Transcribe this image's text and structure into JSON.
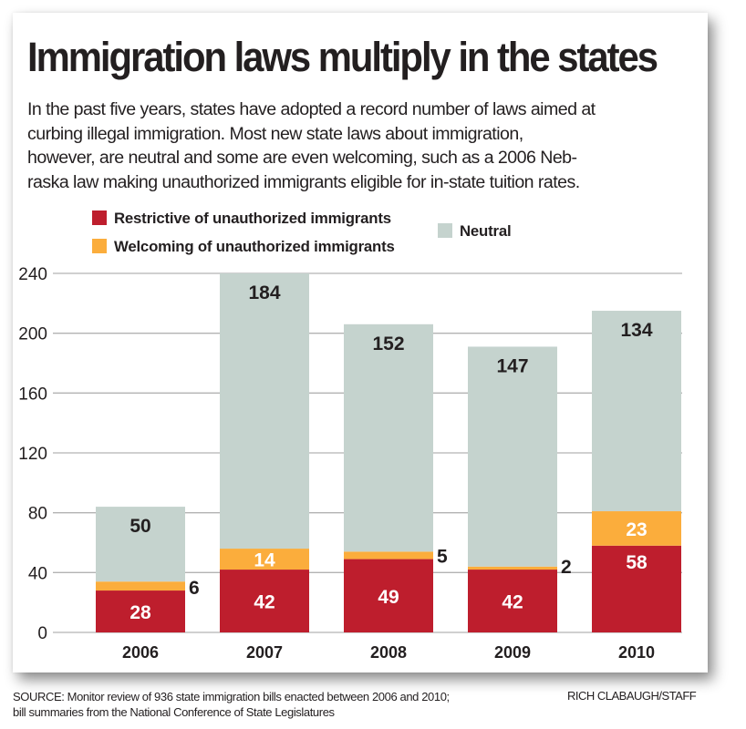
{
  "title": "Immigration laws multiply in the states",
  "intro_lines": [
    "In the past five years, states have adopted a record number of laws aimed at",
    "curbing illegal immigration. Most new state laws about immigration,",
    "however, are neutral and some are even welcoming, such as a 2006 Neb-",
    "raska law making unauthorized immigrants eligible for in-state tuition rates."
  ],
  "legend": {
    "restrictive": "Restrictive of unauthorized immigrants",
    "welcoming": "Welcoming of unauthorized immigrants",
    "neutral": "Neutral"
  },
  "colors": {
    "restrictive": "#be1e2d",
    "welcoming": "#fbad3c",
    "neutral": "#c5d3ce",
    "grid": "#b3b3b3",
    "text": "#231f20"
  },
  "source_lines": [
    "SOURCE: Monitor review of 936 state immigration bills enacted between 2006 and 2010;",
    "bill summaries from the National Conference of State Legislatures"
  ],
  "credit": "RICH CLABAUGH/STAFF",
  "chart_data": {
    "type": "bar",
    "stacked": true,
    "title": "Immigration laws multiply in the states",
    "xlabel": "",
    "ylabel": "",
    "categories": [
      "2006",
      "2007",
      "2008",
      "2009",
      "2010"
    ],
    "series": [
      {
        "name": "Restrictive of unauthorized immigrants",
        "key": "restrictive",
        "values": [
          28,
          42,
          49,
          42,
          58
        ]
      },
      {
        "name": "Welcoming of unauthorized immigrants",
        "key": "welcoming",
        "values": [
          6,
          14,
          5,
          2,
          23
        ]
      },
      {
        "name": "Neutral",
        "key": "neutral",
        "values": [
          50,
          184,
          152,
          147,
          134
        ]
      }
    ],
    "ylim": [
      0,
      240
    ],
    "yticks": [
      0,
      40,
      80,
      120,
      160,
      200,
      240
    ],
    "grid": true,
    "legend_position": "top"
  }
}
